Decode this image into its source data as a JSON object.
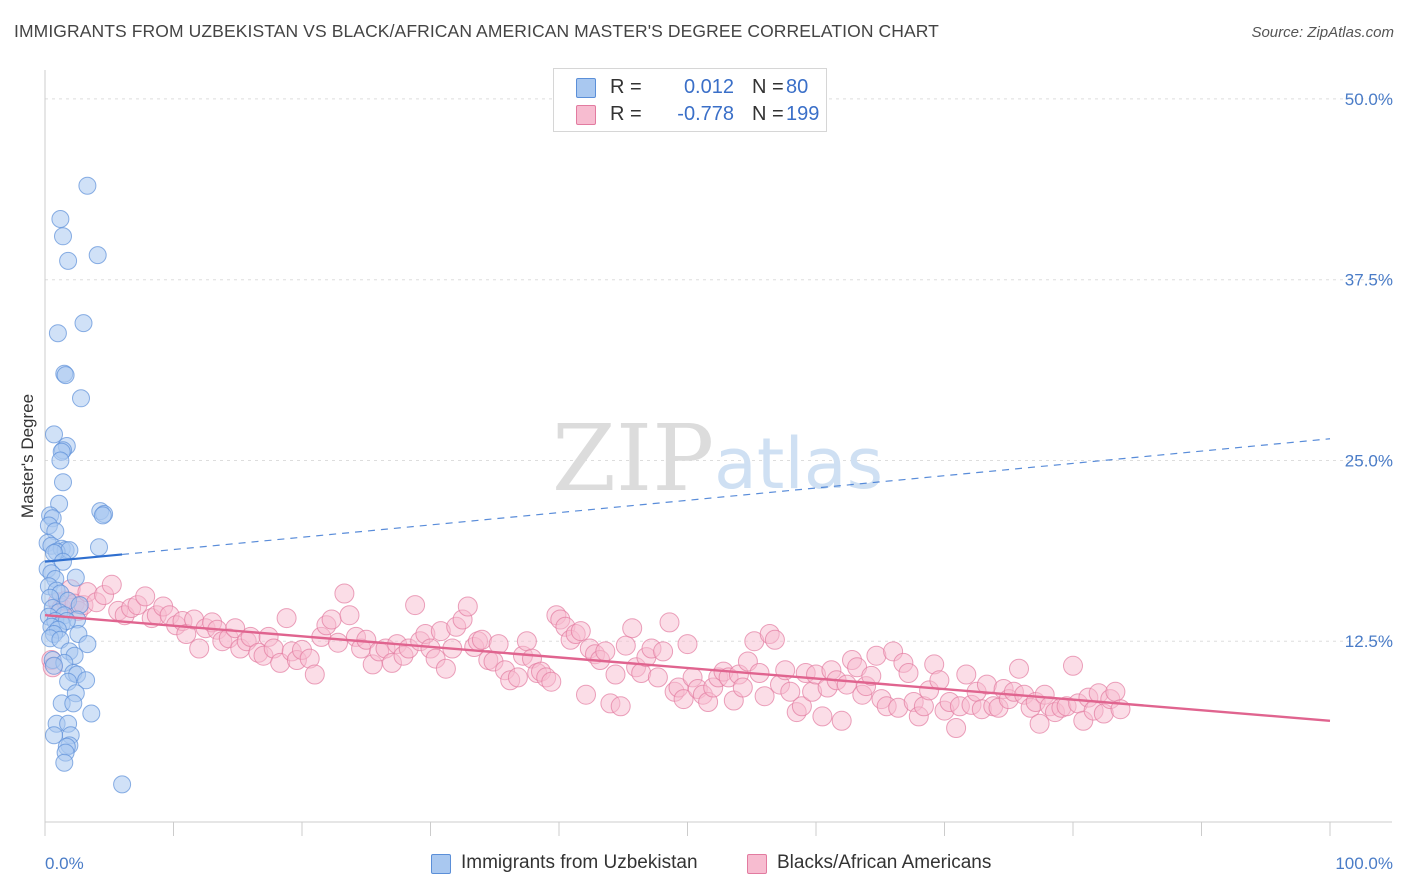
{
  "header": {
    "title": "IMMIGRANTS FROM UZBEKISTAN VS BLACK/AFRICAN AMERICAN MASTER'S DEGREE CORRELATION CHART",
    "source": "Source: ZipAtlas.com"
  },
  "watermark": {
    "zip": "ZIP",
    "atlas": "atlas"
  },
  "legend": {
    "rows": [
      {
        "r_label": "R =",
        "r_value": "0.012",
        "n_label": "N =",
        "n_value": "80",
        "color": "#a9c8f0",
        "border": "#5b8fd8"
      },
      {
        "r_label": "R =",
        "r_value": "-0.778",
        "n_label": "N =",
        "n_value": "199",
        "color": "#f7bcd0",
        "border": "#e27ba0"
      }
    ]
  },
  "bottom_legend": {
    "series_a": "Immigrants from Uzbekistan",
    "series_b": "Blacks/African Americans"
  },
  "chart_data": {
    "type": "scatter",
    "ylabel": "Master's Degree",
    "xlim": [
      0,
      100
    ],
    "ylim": [
      0,
      52
    ],
    "x_tick_labels": [
      "0.0%",
      "100.0%"
    ],
    "y_ticks": [
      {
        "value": 12.5,
        "label": "12.5%"
      },
      {
        "value": 25,
        "label": "25.0%"
      },
      {
        "value": 37.5,
        "label": "37.5%"
      },
      {
        "value": 50,
        "label": "50.0%"
      }
    ],
    "grid": "horizontal dashed",
    "series": [
      {
        "name": "Immigrants from Uzbekistan",
        "color": "#a9c8f0",
        "stroke": "#5b8fd8",
        "trend": {
          "x": [
            0,
            6
          ],
          "y": [
            18.0,
            18.5
          ],
          "extended_to": [
            100,
            26.5
          ],
          "color": "#2f6fcf"
        },
        "points": [
          [
            3.3,
            44.0
          ],
          [
            1.2,
            41.7
          ],
          [
            1.4,
            40.5
          ],
          [
            4.1,
            39.2
          ],
          [
            1.8,
            38.8
          ],
          [
            3.0,
            34.5
          ],
          [
            1.0,
            33.8
          ],
          [
            1.5,
            31.0
          ],
          [
            1.6,
            30.9
          ],
          [
            2.8,
            29.3
          ],
          [
            0.7,
            26.8
          ],
          [
            1.7,
            26.0
          ],
          [
            1.4,
            25.7
          ],
          [
            1.3,
            25.6
          ],
          [
            1.2,
            25.0
          ],
          [
            1.4,
            23.5
          ],
          [
            1.1,
            22.0
          ],
          [
            4.3,
            21.5
          ],
          [
            4.6,
            21.3
          ],
          [
            4.5,
            21.2
          ],
          [
            0.4,
            21.2
          ],
          [
            0.6,
            21.0
          ],
          [
            0.3,
            20.5
          ],
          [
            0.8,
            20.1
          ],
          [
            0.2,
            19.3
          ],
          [
            0.5,
            19.1
          ],
          [
            1.3,
            18.9
          ],
          [
            1.6,
            18.8
          ],
          [
            0.9,
            18.7
          ],
          [
            1.9,
            18.8
          ],
          [
            4.2,
            19.0
          ],
          [
            0.7,
            18.6
          ],
          [
            1.4,
            18.0
          ],
          [
            0.2,
            17.5
          ],
          [
            0.5,
            17.2
          ],
          [
            0.8,
            16.8
          ],
          [
            2.4,
            16.9
          ],
          [
            0.3,
            16.3
          ],
          [
            0.9,
            16.0
          ],
          [
            1.2,
            15.8
          ],
          [
            0.4,
            15.5
          ],
          [
            1.8,
            15.3
          ],
          [
            2.7,
            15.0
          ],
          [
            0.6,
            14.8
          ],
          [
            1.1,
            14.5
          ],
          [
            1.5,
            14.3
          ],
          [
            0.3,
            14.2
          ],
          [
            2.5,
            14.0
          ],
          [
            0.8,
            13.9
          ],
          [
            1.3,
            13.7
          ],
          [
            1.7,
            13.9
          ],
          [
            0.5,
            13.5
          ],
          [
            1.0,
            13.3
          ],
          [
            0.7,
            13.0
          ],
          [
            2.6,
            13.0
          ],
          [
            0.4,
            12.7
          ],
          [
            1.2,
            12.6
          ],
          [
            3.3,
            12.3
          ],
          [
            1.9,
            11.8
          ],
          [
            2.3,
            11.5
          ],
          [
            0.6,
            11.2
          ],
          [
            1.5,
            11.0
          ],
          [
            0.7,
            10.8
          ],
          [
            2.2,
            10.3
          ],
          [
            2.5,
            10.2
          ],
          [
            3.2,
            9.8
          ],
          [
            1.8,
            9.7
          ],
          [
            2.4,
            8.9
          ],
          [
            1.3,
            8.2
          ],
          [
            2.2,
            8.2
          ],
          [
            3.6,
            7.5
          ],
          [
            0.9,
            6.8
          ],
          [
            1.8,
            6.8
          ],
          [
            2.0,
            6.0
          ],
          [
            0.7,
            6.0
          ],
          [
            1.9,
            5.3
          ],
          [
            1.7,
            5.2
          ],
          [
            1.6,
            4.8
          ],
          [
            1.5,
            4.1
          ],
          [
            6.0,
            2.6
          ]
        ]
      },
      {
        "name": "Blacks/African Americans",
        "color": "#f7bcd0",
        "stroke": "#e27ba0",
        "trend": {
          "x": [
            0,
            100
          ],
          "y": [
            14.3,
            7.0
          ],
          "color": "#e0648f"
        },
        "points": [
          [
            0.5,
            11.2
          ],
          [
            0.6,
            10.7
          ],
          [
            1.0,
            15.2
          ],
          [
            1.3,
            14.8
          ],
          [
            1.6,
            15.3
          ],
          [
            2.0,
            16.1
          ],
          [
            2.3,
            15.1
          ],
          [
            2.6,
            14.6
          ],
          [
            3.0,
            15.0
          ],
          [
            3.3,
            15.9
          ],
          [
            4.0,
            15.2
          ],
          [
            4.6,
            15.7
          ],
          [
            5.2,
            16.4
          ],
          [
            5.7,
            14.6
          ],
          [
            6.2,
            14.3
          ],
          [
            6.7,
            14.8
          ],
          [
            7.2,
            15.0
          ],
          [
            7.8,
            15.6
          ],
          [
            8.3,
            14.1
          ],
          [
            8.7,
            14.3
          ],
          [
            9.2,
            14.9
          ],
          [
            9.7,
            14.3
          ],
          [
            10.2,
            13.6
          ],
          [
            10.7,
            13.9
          ],
          [
            11.0,
            13.0
          ],
          [
            11.6,
            14.0
          ],
          [
            12.0,
            12.0
          ],
          [
            12.5,
            13.4
          ],
          [
            13.0,
            13.8
          ],
          [
            13.4,
            13.3
          ],
          [
            13.8,
            12.5
          ],
          [
            14.3,
            12.7
          ],
          [
            14.8,
            13.4
          ],
          [
            15.2,
            12.0
          ],
          [
            15.7,
            12.5
          ],
          [
            16.0,
            12.8
          ],
          [
            16.6,
            11.7
          ],
          [
            17.0,
            11.5
          ],
          [
            17.4,
            12.8
          ],
          [
            17.8,
            12.0
          ],
          [
            18.3,
            11.0
          ],
          [
            18.8,
            14.1
          ],
          [
            19.2,
            11.8
          ],
          [
            19.6,
            11.2
          ],
          [
            20.0,
            11.9
          ],
          [
            20.6,
            11.3
          ],
          [
            21.0,
            10.2
          ],
          [
            21.5,
            12.8
          ],
          [
            21.9,
            13.6
          ],
          [
            22.3,
            14.0
          ],
          [
            22.8,
            12.4
          ],
          [
            23.3,
            15.8
          ],
          [
            23.7,
            14.3
          ],
          [
            24.2,
            12.8
          ],
          [
            24.6,
            12.0
          ],
          [
            25.0,
            12.6
          ],
          [
            25.5,
            10.9
          ],
          [
            26.0,
            11.8
          ],
          [
            26.5,
            12.0
          ],
          [
            27.0,
            11.0
          ],
          [
            27.4,
            12.3
          ],
          [
            27.9,
            11.5
          ],
          [
            28.3,
            12.0
          ],
          [
            28.8,
            15.0
          ],
          [
            29.2,
            12.5
          ],
          [
            29.6,
            13.0
          ],
          [
            30.0,
            12.0
          ],
          [
            30.4,
            11.3
          ],
          [
            30.8,
            13.2
          ],
          [
            31.2,
            10.6
          ],
          [
            31.7,
            12.0
          ],
          [
            32.0,
            13.5
          ],
          [
            32.5,
            14.0
          ],
          [
            32.9,
            14.9
          ],
          [
            33.4,
            12.1
          ],
          [
            33.7,
            12.5
          ],
          [
            34.0,
            12.6
          ],
          [
            34.5,
            11.2
          ],
          [
            34.9,
            11.1
          ],
          [
            35.3,
            12.3
          ],
          [
            35.8,
            10.5
          ],
          [
            36.2,
            9.8
          ],
          [
            36.8,
            10.0
          ],
          [
            37.2,
            11.5
          ],
          [
            37.5,
            12.5
          ],
          [
            37.9,
            11.3
          ],
          [
            38.3,
            10.3
          ],
          [
            38.6,
            10.4
          ],
          [
            39.0,
            10.0
          ],
          [
            39.4,
            9.7
          ],
          [
            39.8,
            14.3
          ],
          [
            40.1,
            14.0
          ],
          [
            40.5,
            13.5
          ],
          [
            40.9,
            12.6
          ],
          [
            41.3,
            13.0
          ],
          [
            41.7,
            13.2
          ],
          [
            42.1,
            8.8
          ],
          [
            42.4,
            12.0
          ],
          [
            42.8,
            11.6
          ],
          [
            43.2,
            11.2
          ],
          [
            43.6,
            11.8
          ],
          [
            44.0,
            8.2
          ],
          [
            44.4,
            10.2
          ],
          [
            44.8,
            8.0
          ],
          [
            45.2,
            12.2
          ],
          [
            45.7,
            13.4
          ],
          [
            46.0,
            10.7
          ],
          [
            46.4,
            10.3
          ],
          [
            46.8,
            11.4
          ],
          [
            47.2,
            12.0
          ],
          [
            47.7,
            10.0
          ],
          [
            48.1,
            11.8
          ],
          [
            48.6,
            13.8
          ],
          [
            49.0,
            9.0
          ],
          [
            49.3,
            9.3
          ],
          [
            49.7,
            8.5
          ],
          [
            50.0,
            12.3
          ],
          [
            50.4,
            10.0
          ],
          [
            50.8,
            9.2
          ],
          [
            51.2,
            8.8
          ],
          [
            51.6,
            8.3
          ],
          [
            52.0,
            9.3
          ],
          [
            52.4,
            10.0
          ],
          [
            52.8,
            10.4
          ],
          [
            53.2,
            10.0
          ],
          [
            53.6,
            8.4
          ],
          [
            54.0,
            10.2
          ],
          [
            54.3,
            9.3
          ],
          [
            54.7,
            11.1
          ],
          [
            55.2,
            12.5
          ],
          [
            55.6,
            10.3
          ],
          [
            56.0,
            8.7
          ],
          [
            56.4,
            13.0
          ],
          [
            56.8,
            12.6
          ],
          [
            57.2,
            9.5
          ],
          [
            57.6,
            10.5
          ],
          [
            58.0,
            9.0
          ],
          [
            58.5,
            7.6
          ],
          [
            58.9,
            8.0
          ],
          [
            59.2,
            10.3
          ],
          [
            59.7,
            9.0
          ],
          [
            60.0,
            10.2
          ],
          [
            60.5,
            7.3
          ],
          [
            60.9,
            9.3
          ],
          [
            61.2,
            10.5
          ],
          [
            61.6,
            9.8
          ],
          [
            62.0,
            7.0
          ],
          [
            62.4,
            9.5
          ],
          [
            62.8,
            11.2
          ],
          [
            63.2,
            10.7
          ],
          [
            63.6,
            8.8
          ],
          [
            63.9,
            9.4
          ],
          [
            64.3,
            10.1
          ],
          [
            64.7,
            11.5
          ],
          [
            65.1,
            8.5
          ],
          [
            65.5,
            8.0
          ],
          [
            66.0,
            11.8
          ],
          [
            66.4,
            7.9
          ],
          [
            66.8,
            11.0
          ],
          [
            67.2,
            10.3
          ],
          [
            67.6,
            8.3
          ],
          [
            68.0,
            7.3
          ],
          [
            68.4,
            8.0
          ],
          [
            68.8,
            9.1
          ],
          [
            69.2,
            10.9
          ],
          [
            69.6,
            9.8
          ],
          [
            70.0,
            7.7
          ],
          [
            70.4,
            8.3
          ],
          [
            70.9,
            6.5
          ],
          [
            71.2,
            8.0
          ],
          [
            71.7,
            10.2
          ],
          [
            72.1,
            8.1
          ],
          [
            72.5,
            9.0
          ],
          [
            72.9,
            7.8
          ],
          [
            73.3,
            9.5
          ],
          [
            73.8,
            8.0
          ],
          [
            74.2,
            7.9
          ],
          [
            74.6,
            9.2
          ],
          [
            75.0,
            8.5
          ],
          [
            75.4,
            9.0
          ],
          [
            75.8,
            10.6
          ],
          [
            76.2,
            8.8
          ],
          [
            76.7,
            7.9
          ],
          [
            77.1,
            8.3
          ],
          [
            77.4,
            6.8
          ],
          [
            77.8,
            8.8
          ],
          [
            78.2,
            8.0
          ],
          [
            78.6,
            7.6
          ],
          [
            79.1,
            7.9
          ],
          [
            79.5,
            8.0
          ],
          [
            80.0,
            10.8
          ],
          [
            80.4,
            8.2
          ],
          [
            80.8,
            7.0
          ],
          [
            81.2,
            8.6
          ],
          [
            81.6,
            7.7
          ],
          [
            82.0,
            8.9
          ],
          [
            82.4,
            7.5
          ],
          [
            82.9,
            8.5
          ],
          [
            83.3,
            9.0
          ],
          [
            83.7,
            7.8
          ]
        ]
      }
    ]
  }
}
